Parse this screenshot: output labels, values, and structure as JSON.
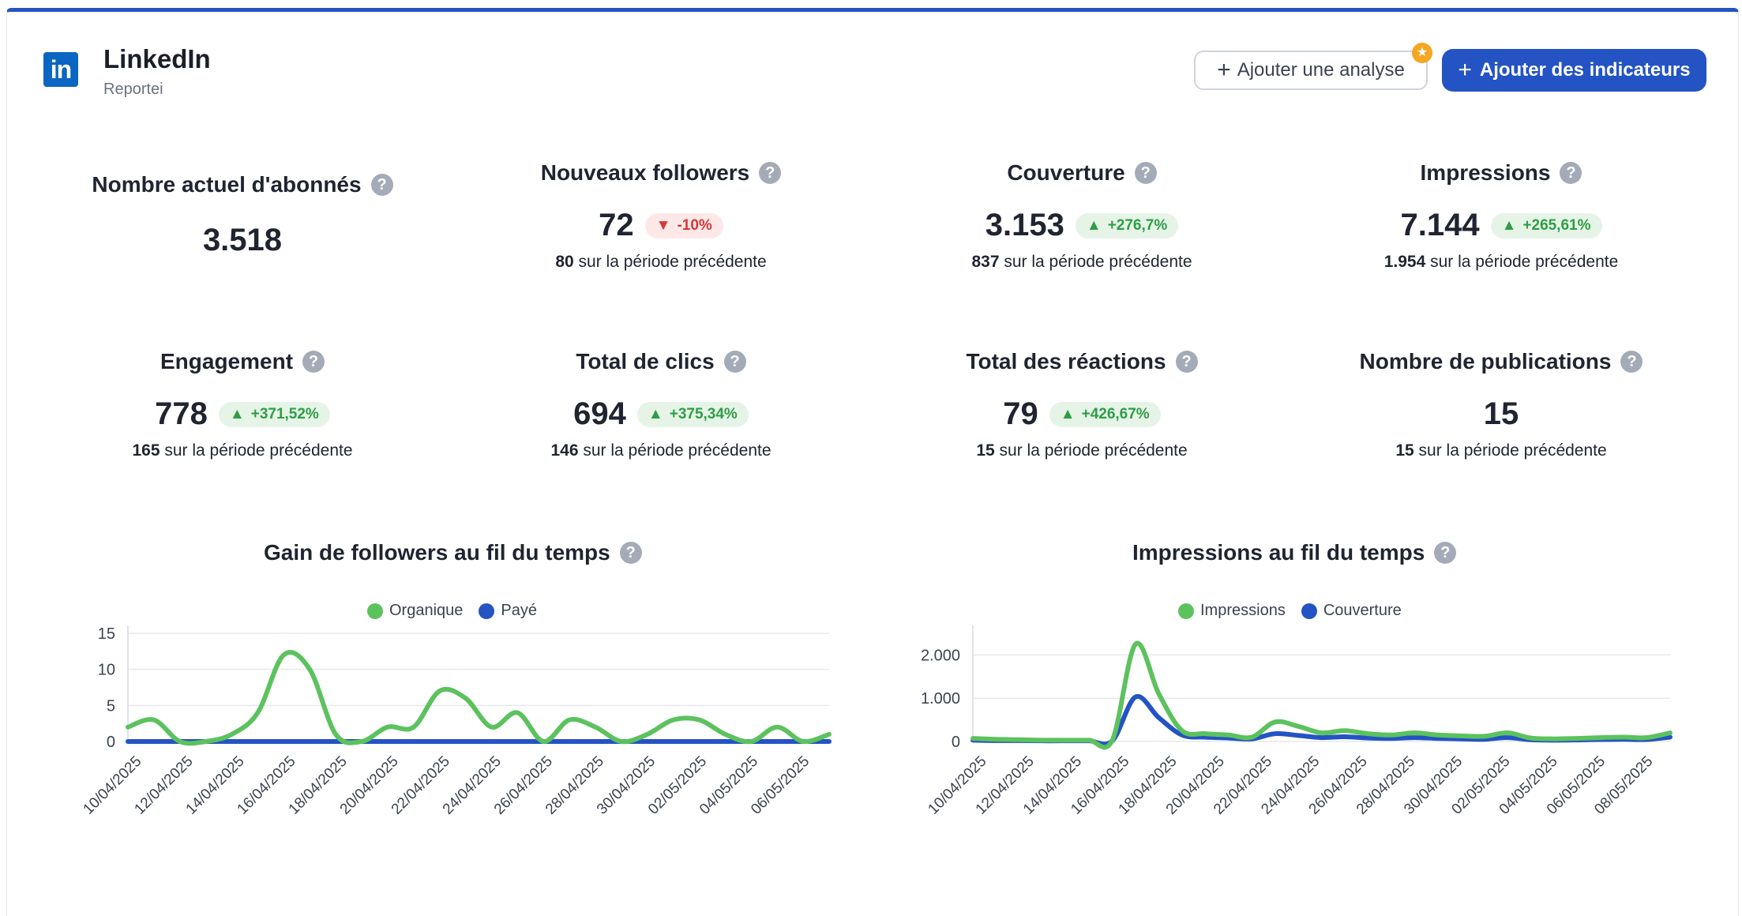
{
  "header": {
    "title": "LinkedIn",
    "subtitle": "Reportei",
    "logo_text": "in",
    "add_analysis_label": "Ajouter une analyse",
    "add_indicators_label": "Ajouter des indicateurs"
  },
  "colors": {
    "accent": "#2453c3",
    "green": "#5cc25e",
    "blue": "#2453c3",
    "linkedin": "#0a66c2"
  },
  "kpis": [
    {
      "title": "Nombre actuel d'abonnés",
      "value": "3.518"
    },
    {
      "title": "Nouveaux followers",
      "value": "72",
      "delta": "-10%",
      "delta_dir": "down",
      "prev": "80",
      "prev_text": "sur la période précédente"
    },
    {
      "title": "Couverture",
      "value": "3.153",
      "delta": "+276,7%",
      "delta_dir": "up",
      "prev": "837",
      "prev_text": "sur la période précédente"
    },
    {
      "title": "Impressions",
      "value": "7.144",
      "delta": "+265,61%",
      "delta_dir": "up",
      "prev": "1.954",
      "prev_text": "sur la période précédente"
    },
    {
      "title": "Engagement",
      "value": "778",
      "delta": "+371,52%",
      "delta_dir": "up",
      "prev": "165",
      "prev_text": "sur la période précédente"
    },
    {
      "title": "Total de clics",
      "value": "694",
      "delta": "+375,34%",
      "delta_dir": "up",
      "prev": "146",
      "prev_text": "sur la période précédente"
    },
    {
      "title": "Total des réactions",
      "value": "79",
      "delta": "+426,67%",
      "delta_dir": "up",
      "prev": "15",
      "prev_text": "sur la période précédente"
    },
    {
      "title": "Nombre de publications",
      "value": "15",
      "prev": "15",
      "prev_text": "sur la période précédente"
    }
  ],
  "chart_data": [
    {
      "type": "line",
      "title": "Gain de followers au fil du temps",
      "ylim": [
        0,
        15
      ],
      "yticks": [
        "0",
        "5",
        "10",
        "15"
      ],
      "xticks": [
        "10/04/2025",
        "12/04/2025",
        "14/04/2025",
        "16/04/2025",
        "18/04/2025",
        "20/04/2025",
        "22/04/2025",
        "24/04/2025",
        "26/04/2025",
        "28/04/2025",
        "30/04/2025",
        "02/05/2025",
        "04/05/2025",
        "06/05/2025"
      ],
      "legend": "top",
      "series": [
        {
          "name": "Organique",
          "color": "#5cc25e",
          "values": [
            2,
            3,
            0,
            0,
            1,
            4,
            12,
            10,
            1,
            0,
            2,
            2,
            7,
            6,
            2,
            4,
            0,
            3,
            2,
            0,
            1,
            3,
            3,
            1,
            0,
            2,
            0,
            1
          ]
        },
        {
          "name": "Payé",
          "color": "#2453c3",
          "values": [
            0,
            0,
            0,
            0,
            0,
            0,
            0,
            0,
            0,
            0,
            0,
            0,
            0,
            0,
            0,
            0,
            0,
            0,
            0,
            0,
            0,
            0,
            0,
            0,
            0,
            0,
            0,
            0
          ]
        }
      ]
    },
    {
      "type": "line",
      "title": "Impressions au fil du temps",
      "ylim": [
        0,
        2500
      ],
      "yticks": [
        "0",
        "1.000",
        "2.000"
      ],
      "xticks": [
        "10/04/2025",
        "12/04/2025",
        "14/04/2025",
        "16/04/2025",
        "18/04/2025",
        "20/04/2025",
        "22/04/2025",
        "24/04/2025",
        "26/04/2025",
        "28/04/2025",
        "30/04/2025",
        "02/05/2025",
        "04/05/2025",
        "06/05/2025",
        "08/05/2025"
      ],
      "legend": "top",
      "series": [
        {
          "name": "Impressions",
          "color": "#5cc25e",
          "values": [
            70,
            50,
            40,
            30,
            30,
            30,
            30,
            2250,
            1100,
            250,
            180,
            150,
            100,
            450,
            350,
            200,
            250,
            180,
            150,
            200,
            150,
            130,
            120,
            200,
            80,
            60,
            70,
            90,
            100,
            90,
            200
          ]
        },
        {
          "name": "Couverture",
          "color": "#2453c3",
          "values": [
            30,
            20,
            20,
            15,
            15,
            15,
            15,
            1030,
            550,
            150,
            100,
            80,
            60,
            180,
            140,
            90,
            110,
            80,
            70,
            90,
            70,
            60,
            50,
            90,
            40,
            30,
            35,
            45,
            50,
            45,
            100
          ]
        }
      ]
    }
  ]
}
